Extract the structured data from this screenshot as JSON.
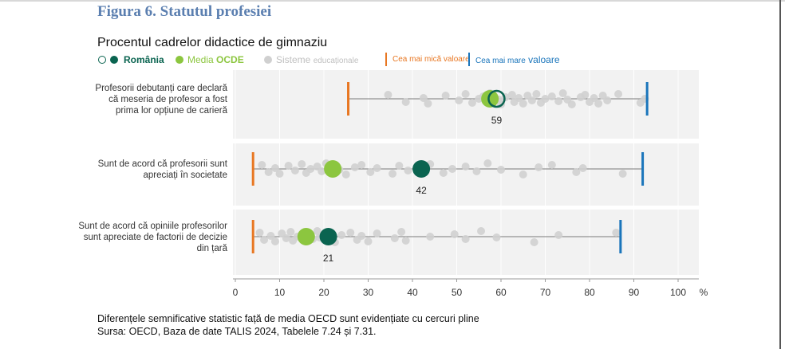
{
  "figure_title": "Figura 6. Statutul profesiei",
  "legend": {
    "romania": "România",
    "oecd_prefix": "Media ",
    "oecd_bold": "OCDE",
    "systems_prefix": "Sisteme ",
    "systems_small": "educaționale",
    "min_label": "Cea mai mică valoare",
    "max_label_prefix": "Cea mai mare",
    "max_label_suffix": "valoare"
  },
  "colors": {
    "romania": "#0a6450",
    "oecd": "#8cc63f",
    "systems": "#d0d0d0",
    "min": "#e87722",
    "max": "#1a75bb",
    "title": "#5b7fb0"
  },
  "chart_data": {
    "type": "scatter",
    "title": "Procentul cadrelor didactice de gimnaziu",
    "unit": "%",
    "xlim": [
      0,
      100
    ],
    "xticks": [
      0,
      10,
      20,
      30,
      40,
      50,
      60,
      70,
      80,
      90,
      100
    ],
    "rows": [
      {
        "label_lines": [
          "Profesorii debutanți care declară",
          "că meseria de profesor a fost",
          "prima lor opțiune de carieră"
        ],
        "min": 25.5,
        "max": 93,
        "oecd": 57.5,
        "romania": 59,
        "romania_label": "59",
        "romania_significant": false,
        "systems": [
          34.5,
          38.5,
          42.5,
          43.5,
          47.5,
          50.5,
          52,
          53.5,
          55,
          56,
          56.5,
          57.5,
          59.5,
          60,
          61,
          62.5,
          63,
          64,
          65,
          66,
          67,
          68,
          69,
          70,
          71.5,
          73,
          74,
          75,
          76,
          78,
          79,
          80,
          81,
          82,
          83,
          84,
          86.5,
          91.5,
          92.5
        ]
      },
      {
        "label_lines": [
          "Sunt de acord că profesorii sunt",
          "apreciați în societate"
        ],
        "min": 4,
        "max": 92,
        "oecd": 22,
        "romania": 42,
        "romania_label": "42",
        "romania_significant": true,
        "systems": [
          6,
          7.5,
          9,
          10,
          12,
          13.5,
          15,
          16,
          17,
          18.5,
          19.5,
          20.5,
          23.5,
          25,
          27,
          28.5,
          30.5,
          32,
          35.5,
          37,
          39,
          44,
          47,
          49,
          52,
          54.5,
          57,
          60,
          65,
          68.5,
          71.5,
          77,
          78.5,
          87.5
        ]
      },
      {
        "label_lines": [
          "Sunt de acord că opiniile profesorilor",
          "sunt apreciate de factorii de decizie",
          "din țară"
        ],
        "min": 4,
        "max": 87,
        "oecd": 16,
        "romania": 21,
        "romania_label": "21",
        "romania_significant": true,
        "systems": [
          5.5,
          6.5,
          8,
          9,
          10.5,
          11.5,
          12.5,
          13,
          14,
          15,
          17.5,
          18.5,
          19,
          22.5,
          24,
          26,
          27.5,
          28.5,
          30,
          32,
          36,
          37.5,
          38.5,
          44,
          49.5,
          52,
          55.5,
          59,
          67.5,
          73,
          86
        ]
      }
    ]
  },
  "footnotes": [
    "Diferențele semnificative statistic față de media OECD sunt evidențiate cu cercuri pline",
    "Sursa: OECD, Baza de date TALIS 2024, Tabelele 7.24 și 7.31."
  ]
}
